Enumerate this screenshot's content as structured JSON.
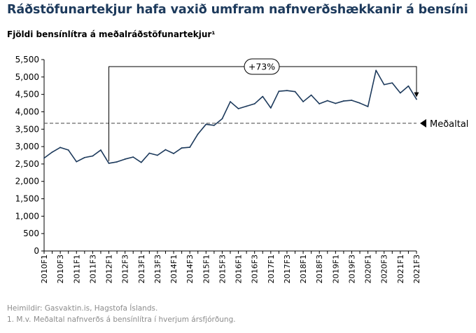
{
  "header": {
    "title": "Ráðstöfunartekjur hafa vaxið umfram nafnverðshækkanir á bensíni",
    "subtitle": "Fjöldi bensínlítra á meðalráðstöfunartekjur¹"
  },
  "footer": {
    "source": "Heimildir: Gasvaktin.is, Hagstofa Íslands.",
    "note": "1. M.v. Meðaltal nafnverðs á bensínlítra í hverjum ársfjórðung."
  },
  "colors": {
    "line": "#1d3a5c",
    "title": "#1d3a5c",
    "axis": "#000000",
    "reference": "#595959",
    "footnote": "#8c8c8c"
  },
  "chart_data": {
    "type": "line",
    "title": "Ráðstöfunartekjur hafa vaxið umfram nafnverðshækkanir á bensíni",
    "subtitle": "Fjöldi bensínlítra á meðalráðstöfunartekjur¹",
    "xlabel": "",
    "ylabel": "",
    "ylim": [
      0,
      5500
    ],
    "yticks": [
      0,
      500,
      1000,
      1500,
      2000,
      2500,
      3000,
      3500,
      4000,
      4500,
      5000,
      5500
    ],
    "ytick_labels": [
      "0",
      "500",
      "1,000",
      "1,500",
      "2,000",
      "2,500",
      "3,000",
      "3,500",
      "4,000",
      "4,500",
      "5,000",
      "5,500"
    ],
    "grid": false,
    "legend": "none",
    "categories": [
      "2010F1",
      "2010F2",
      "2010F3",
      "2010F4",
      "2011F1",
      "2011F2",
      "2011F3",
      "2011F4",
      "2012F1",
      "2012F2",
      "2012F3",
      "2012F4",
      "2013F1",
      "2013F2",
      "2013F3",
      "2013F4",
      "2014F1",
      "2014F2",
      "2014F3",
      "2014F4",
      "2015F1",
      "2015F2",
      "2015F3",
      "2015F4",
      "2016F1",
      "2016F2",
      "2016F3",
      "2016F4",
      "2017F1",
      "2017F2",
      "2017F3",
      "2017F4",
      "2018F1",
      "2018F2",
      "2018F3",
      "2018F4",
      "2019F1",
      "2019F2",
      "2019F3",
      "2019F4",
      "2020F1",
      "2020F2",
      "2020F3",
      "2020F4",
      "2021F1",
      "2021F2",
      "2021F3"
    ],
    "tick_labels": [
      "2010F1",
      "2010F3",
      "2011F1",
      "2011F3",
      "2012F1",
      "2012F3",
      "2013F1",
      "2013F3",
      "2014F1",
      "2014F3",
      "2015F1",
      "2015F3",
      "2016F1",
      "2016F3",
      "2017F1",
      "2017F3",
      "2018F1",
      "2018F3",
      "2019F1",
      "2019F3",
      "2020F1",
      "2020F3",
      "2021F1",
      "2021F3"
    ],
    "series": [
      {
        "values": [
          2670,
          2840,
          2975,
          2900,
          2565,
          2685,
          2730,
          2900,
          2520,
          2560,
          2640,
          2700,
          2545,
          2810,
          2750,
          2910,
          2800,
          2960,
          2980,
          3360,
          3640,
          3610,
          3800,
          4290,
          4090,
          4160,
          4230,
          4440,
          4110,
          4590,
          4610,
          4580,
          4290,
          4480,
          4230,
          4320,
          4240,
          4310,
          4330,
          4250,
          4150,
          5190,
          4780,
          4830,
          4540,
          4740,
          4360
        ]
      }
    ],
    "reference_line": {
      "value": 3670,
      "label": "Meðaltal"
    },
    "annotation": {
      "label": "+73%",
      "from": "2012F1",
      "to": "2021F3"
    }
  }
}
